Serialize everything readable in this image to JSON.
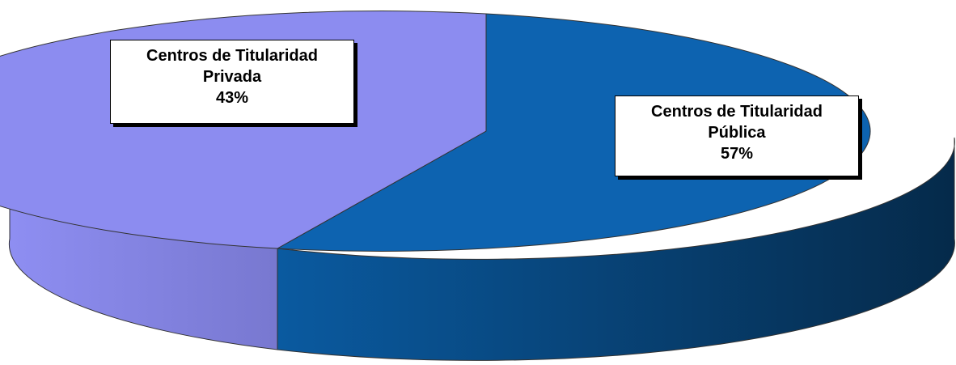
{
  "chart_data": {
    "type": "pie",
    "style": "3d",
    "slices": [
      {
        "label_line1": "Centros de Titularidad",
        "label_line2": "Pública",
        "percent_label": "57%",
        "value": 57,
        "color": "#0d5fa8"
      },
      {
        "label_line1": "Centros de Titularidad",
        "label_line2": "Privada",
        "percent_label": "43%",
        "value": 43,
        "color": "#8c8cf0"
      }
    ]
  }
}
